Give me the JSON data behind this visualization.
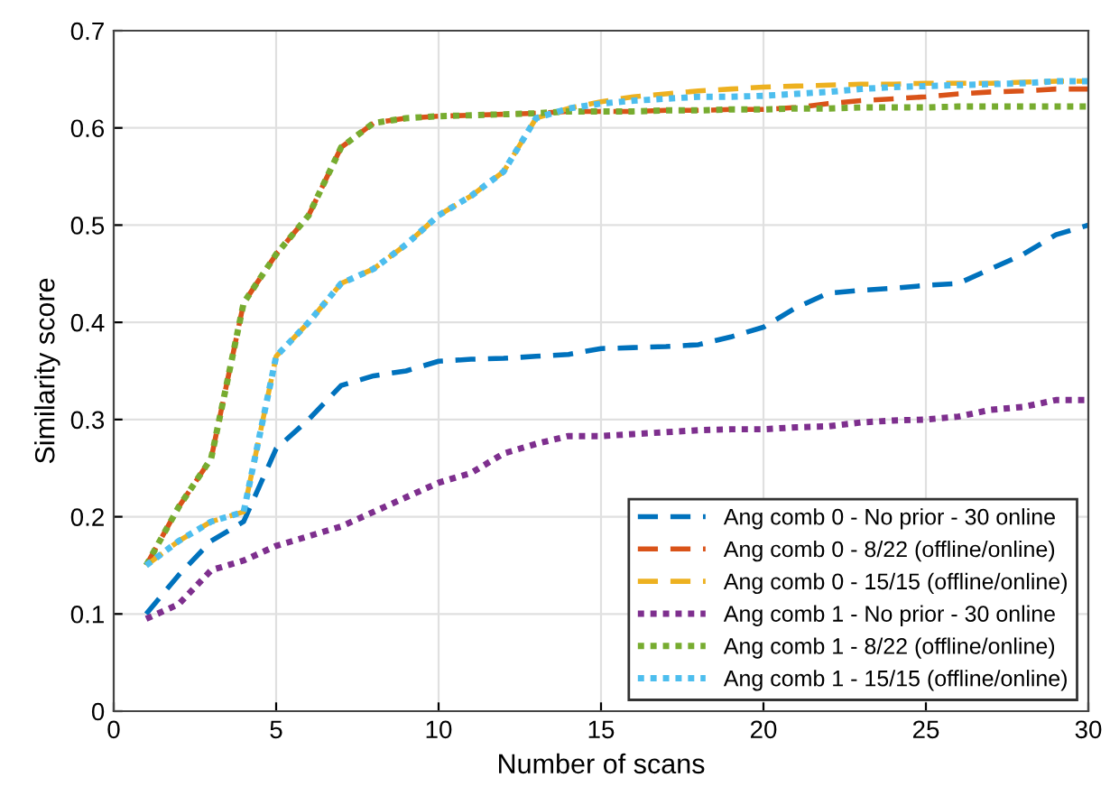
{
  "chart_data": {
    "type": "line",
    "xlabel": "Number of scans",
    "ylabel": "Similarity score",
    "x": [
      1,
      2,
      3,
      4,
      5,
      6,
      7,
      8,
      9,
      10,
      11,
      12,
      13,
      14,
      15,
      16,
      17,
      18,
      19,
      20,
      21,
      22,
      23,
      24,
      25,
      26,
      27,
      28,
      29,
      30
    ],
    "xlim": [
      0,
      30
    ],
    "xticks": [
      0,
      5,
      10,
      15,
      20,
      25,
      30
    ],
    "ylim": [
      0,
      0.7
    ],
    "yticks": [
      0,
      0.1,
      0.2,
      0.3,
      0.4,
      0.5,
      0.6,
      0.7
    ],
    "grid": true,
    "legend": "bottom right",
    "marker": "none",
    "series": [
      {
        "name": "Ang comb 0 - No prior - 30 online",
        "color": "#0072bd",
        "line_style": "dashed",
        "values": [
          0.1,
          0.14,
          0.175,
          0.195,
          0.27,
          0.3,
          0.335,
          0.345,
          0.35,
          0.36,
          0.362,
          0.363,
          0.365,
          0.367,
          0.373,
          0.374,
          0.375,
          0.377,
          0.385,
          0.395,
          0.415,
          0.43,
          0.433,
          0.435,
          0.438,
          0.44,
          0.455,
          0.47,
          0.49,
          0.5
        ]
      },
      {
        "name": "Ang comb 0 - 8/22 (offline/online)",
        "color": "#d95319",
        "line_style": "dashed",
        "values": [
          0.15,
          0.21,
          0.26,
          0.42,
          0.47,
          0.51,
          0.58,
          0.605,
          0.61,
          0.612,
          0.613,
          0.614,
          0.615,
          0.617,
          0.617,
          0.617,
          0.618,
          0.618,
          0.619,
          0.619,
          0.621,
          0.625,
          0.628,
          0.63,
          0.632,
          0.635,
          0.637,
          0.638,
          0.64,
          0.64
        ]
      },
      {
        "name": "Ang comb 0 - 15/15 (offline/online)",
        "color": "#edb120",
        "line_style": "dashed",
        "values": [
          0.15,
          0.175,
          0.195,
          0.205,
          0.365,
          0.4,
          0.44,
          0.455,
          0.48,
          0.51,
          0.53,
          0.555,
          0.61,
          0.62,
          0.627,
          0.632,
          0.635,
          0.638,
          0.64,
          0.642,
          0.643,
          0.644,
          0.645,
          0.645,
          0.646,
          0.646,
          0.646,
          0.647,
          0.648,
          0.648
        ]
      },
      {
        "name": "Ang comb 1 - No prior - 30 online",
        "color": "#7e2f8e",
        "line_style": "dotted",
        "values": [
          0.095,
          0.11,
          0.145,
          0.155,
          0.17,
          0.18,
          0.19,
          0.205,
          0.22,
          0.235,
          0.245,
          0.265,
          0.275,
          0.283,
          0.283,
          0.285,
          0.287,
          0.289,
          0.29,
          0.29,
          0.292,
          0.293,
          0.297,
          0.299,
          0.3,
          0.303,
          0.31,
          0.313,
          0.32,
          0.32
        ]
      },
      {
        "name": "Ang comb 1 - 8/22 (offline/online)",
        "color": "#77ac30",
        "line_style": "dotted",
        "values": [
          0.15,
          0.21,
          0.26,
          0.42,
          0.47,
          0.51,
          0.58,
          0.605,
          0.61,
          0.612,
          0.613,
          0.614,
          0.615,
          0.617,
          0.617,
          0.617,
          0.618,
          0.618,
          0.619,
          0.619,
          0.62,
          0.62,
          0.621,
          0.621,
          0.621,
          0.622,
          0.622,
          0.622,
          0.622,
          0.622
        ]
      },
      {
        "name": "Ang comb 1 - 15/15 (offline/online)",
        "color": "#4dbeee",
        "line_style": "dotted",
        "values": [
          0.15,
          0.175,
          0.195,
          0.205,
          0.365,
          0.4,
          0.44,
          0.455,
          0.48,
          0.51,
          0.53,
          0.555,
          0.61,
          0.62,
          0.625,
          0.628,
          0.63,
          0.632,
          0.632,
          0.633,
          0.635,
          0.637,
          0.64,
          0.642,
          0.643,
          0.644,
          0.645,
          0.646,
          0.648,
          0.648
        ]
      }
    ]
  }
}
